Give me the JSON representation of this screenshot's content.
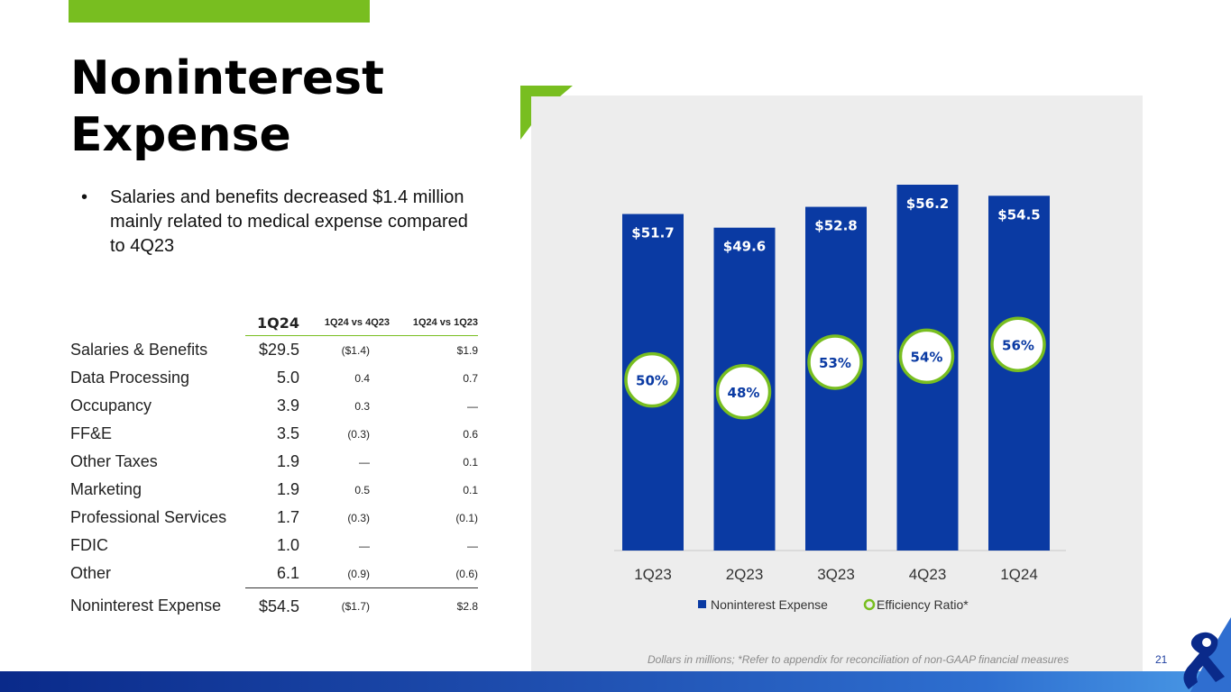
{
  "slide": {
    "title": "Noninterest Expense",
    "bullet": "Salaries and benefits decreased $1.4 million mainly related to medical expense compared to 4Q23",
    "footnote": "Dollars in millions; *Refer to appendix for reconciliation of non-GAAP financial measures",
    "page_number": "21"
  },
  "table": {
    "headers": [
      "1Q24",
      "1Q24 vs 4Q23",
      "1Q24 vs 1Q23"
    ],
    "rows": [
      {
        "label": "Salaries & Benefits",
        "q": "$29.5",
        "vs4": "($1.4)",
        "vs1": "$1.9"
      },
      {
        "label": "Data Processing",
        "q": "5.0",
        "vs4": "0.4",
        "vs1": "0.7"
      },
      {
        "label": "Occupancy",
        "q": "3.9",
        "vs4": "0.3",
        "vs1": "—"
      },
      {
        "label": "FF&E",
        "q": "3.5",
        "vs4": "(0.3)",
        "vs1": "0.6"
      },
      {
        "label": "Other Taxes",
        "q": "1.9",
        "vs4": "—",
        "vs1": "0.1"
      },
      {
        "label": "Marketing",
        "q": "1.9",
        "vs4": "0.5",
        "vs1": "0.1"
      },
      {
        "label": "Professional Services",
        "q": "1.7",
        "vs4": "(0.3)",
        "vs1": "(0.1)"
      },
      {
        "label": "FDIC",
        "q": "1.0",
        "vs4": "—",
        "vs1": "—"
      },
      {
        "label": "Other",
        "q": "6.1",
        "vs4": "(0.9)",
        "vs1": "(0.6)"
      }
    ],
    "total": {
      "label": "Noninterest Expense",
      "q": "$54.5",
      "vs4": "($1.7)",
      "vs1": "$2.8"
    }
  },
  "chart_data": {
    "type": "bar",
    "categories": [
      "1Q23",
      "2Q23",
      "3Q23",
      "4Q23",
      "1Q24"
    ],
    "series": [
      {
        "name": "Noninterest Expense",
        "values": [
          51.7,
          49.6,
          52.8,
          56.2,
          54.5
        ],
        "labels": [
          "$51.7",
          "$49.6",
          "$52.8",
          "$56.2",
          "$54.5"
        ],
        "color": "#0a3aa3"
      },
      {
        "name": "Efficiency Ratio*",
        "values": [
          50,
          48,
          53,
          54,
          56
        ],
        "labels": [
          "50%",
          "48%",
          "53%",
          "54%",
          "56%"
        ],
        "color": "#78be20"
      }
    ],
    "legend": [
      "Noninterest Expense",
      "Efficiency Ratio*"
    ],
    "ylim": [
      0,
      56.2
    ],
    "ratio_ylim": [
      44,
      60
    ],
    "grid": false,
    "legend_position": "bottom"
  },
  "colors": {
    "accent": "#78be20",
    "bar": "#0a3aa3",
    "chart_bg": "#ededed"
  }
}
